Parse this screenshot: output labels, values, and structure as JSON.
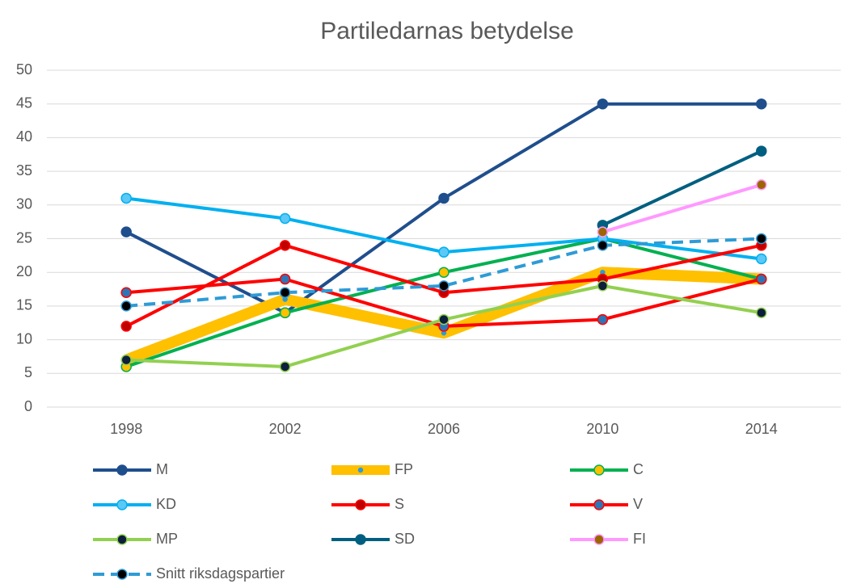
{
  "chart_data": {
    "type": "line",
    "title": "Partiledarnas betydelse",
    "categories": [
      "1998",
      "2002",
      "2006",
      "2010",
      "2014"
    ],
    "ylim": [
      0,
      50
    ],
    "yticks": [
      0,
      5,
      10,
      15,
      20,
      25,
      30,
      35,
      40,
      45,
      50
    ],
    "grid": true,
    "legend": "bottom",
    "series": [
      {
        "name": "M",
        "color": "#1f4e8c",
        "marker": "#1f4e8c",
        "values": [
          26,
          14,
          31,
          45,
          45
        ]
      },
      {
        "name": "FP",
        "color": "#ffc000",
        "marker": "#2e9bd6",
        "thick": true,
        "values": [
          7,
          16,
          11,
          20,
          19
        ]
      },
      {
        "name": "C",
        "color": "#00b050",
        "marker": "#ffc000",
        "values": [
          6,
          14,
          20,
          25,
          19
        ]
      },
      {
        "name": "KD",
        "color": "#00b0f0",
        "marker": "#5bc8f5",
        "values": [
          31,
          28,
          23,
          25,
          22
        ]
      },
      {
        "name": "S",
        "color": "#ff0000",
        "marker": "#c00000",
        "values": [
          12,
          24,
          17,
          19,
          24
        ]
      },
      {
        "name": "V",
        "color": "#ff0000",
        "marker": "#2e75b6",
        "values": [
          17,
          19,
          12,
          13,
          19
        ]
      },
      {
        "name": "MP",
        "color": "#92d050",
        "marker": "#0d1f3c",
        "values": [
          7,
          6,
          13,
          18,
          14
        ]
      },
      {
        "name": "SD",
        "color": "#005f80",
        "marker": "#005f80",
        "values": [
          null,
          null,
          null,
          27,
          38
        ]
      },
      {
        "name": "FI",
        "color": "#ff99ff",
        "marker": "#9c6500",
        "values": [
          null,
          null,
          null,
          26,
          33
        ]
      },
      {
        "name": "Snitt riksdagspartier",
        "color": "#2e9bd6",
        "marker": "#000000",
        "dashed": true,
        "values": [
          15,
          17,
          18,
          24,
          25
        ]
      }
    ]
  }
}
